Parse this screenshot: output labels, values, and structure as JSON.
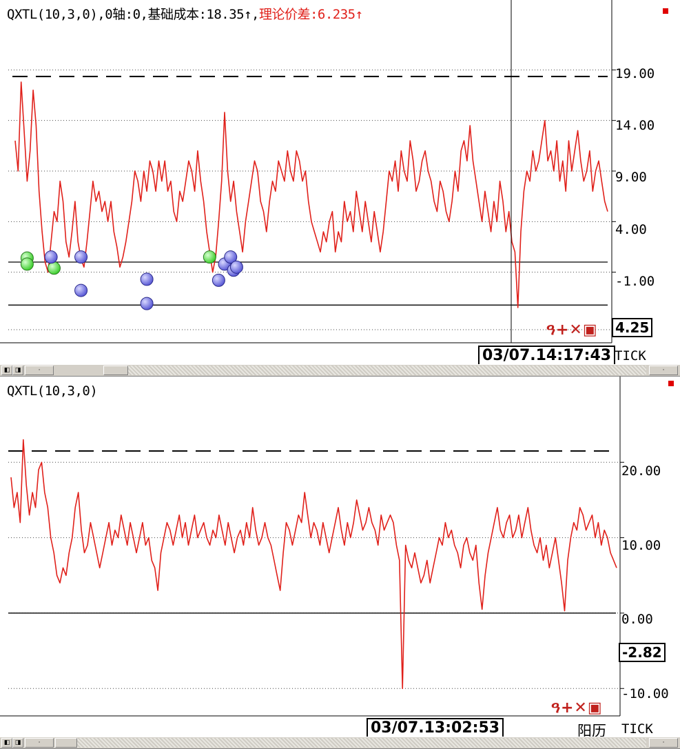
{
  "colors": {
    "series": "#e0201a",
    "marker_blue": "#5b5bd6",
    "marker_green": "#3fcf2f",
    "title_accent": "#e0201a"
  },
  "panels": [
    {
      "title_prefix": "QXTL(10,3,0),0轴:0,基础成本:18.35↑,",
      "title_accent": "理论价差:6.235↑",
      "y_ticks": [
        "19.00",
        "14.00",
        "9.00",
        "4.00",
        "-1.00"
      ],
      "cursor_value": "4.25",
      "cursor_time": "03/07.14:17:43",
      "period_label": "TICK",
      "tools": "ዓ+✕▣"
    },
    {
      "title_prefix": "QXTL(10,3,0)",
      "title_accent": "",
      "y_ticks": [
        "20.00",
        "10.00",
        "0.00",
        "-10.00"
      ],
      "cursor_value": "-2.82",
      "cursor_time": "03/07.13:02:53",
      "calendar_label": "阳历",
      "period_label": "TICK",
      "tools": "ዓ+✕▣"
    }
  ],
  "chart_data": [
    {
      "type": "line",
      "title": "QXTL(10,3,0),0轴:0,基础成本:18.35↑,理论价差:6.235↑",
      "ylim": [
        -7.5,
        24
      ],
      "y_ticks": [
        19,
        14,
        9,
        4,
        -1
      ],
      "grid": true,
      "reference_lines": {
        "cost_dashed": 18.35,
        "zero_solid": 0,
        "lower_solid": -4.25
      },
      "series": [
        {
          "values": [
            12,
            9,
            17.8,
            13,
            8,
            11,
            17,
            13.5,
            7,
            3,
            0,
            -1,
            2,
            5,
            4,
            8,
            6,
            2,
            0.5,
            3,
            6,
            2,
            0.3,
            -0.5,
            2,
            5,
            8,
            6,
            7,
            5,
            6,
            4,
            6,
            3,
            1.5,
            -0.5,
            0.5,
            2,
            4,
            6,
            9,
            8,
            6,
            9,
            7,
            10,
            9,
            7,
            10,
            8,
            10,
            7,
            8,
            5,
            4,
            7,
            6,
            8,
            10,
            9,
            7,
            11,
            8,
            6,
            3,
            1,
            -1,
            0.5,
            4,
            8,
            14.8,
            9,
            6,
            8,
            5,
            3,
            1,
            4,
            6,
            8,
            10,
            9,
            6,
            5,
            3,
            6,
            8,
            7,
            10,
            9,
            8,
            11,
            9,
            8,
            11,
            10,
            8,
            9,
            6,
            4,
            3,
            2,
            1,
            3,
            2,
            4,
            5,
            1,
            3,
            2,
            6,
            4,
            5,
            3,
            7,
            5,
            3,
            6,
            4,
            2,
            5,
            3,
            1,
            3,
            6,
            9,
            8,
            10,
            7,
            11,
            9,
            8,
            12,
            10,
            7,
            8,
            10,
            11,
            9,
            8,
            6,
            5,
            8,
            7,
            5,
            4,
            6,
            9,
            7,
            11,
            12,
            10,
            13.5,
            10,
            8,
            6,
            4,
            7,
            5,
            3,
            6,
            4,
            8,
            6,
            3,
            5,
            2,
            1,
            -4.5,
            3,
            7,
            9,
            8,
            11,
            9,
            10,
            12,
            14,
            10,
            11,
            9,
            12,
            8,
            10,
            7,
            12,
            9,
            11,
            13,
            10,
            8,
            9,
            11,
            7,
            9,
            10,
            8,
            6,
            5
          ]
        }
      ],
      "markers": {
        "blue": [
          [
            12,
            0.5
          ],
          [
            22,
            0.5
          ],
          [
            22,
            -2.8
          ],
          [
            44,
            -1.7
          ],
          [
            44,
            -4.1
          ],
          [
            68,
            -1.8
          ],
          [
            70,
            -0.2
          ],
          [
            72,
            0.5
          ],
          [
            73,
            -0.8
          ],
          [
            74,
            -0.5
          ]
        ],
        "green": [
          [
            4,
            0.4
          ],
          [
            4,
            -0.2
          ],
          [
            13,
            -0.6
          ],
          [
            65,
            0.5
          ]
        ]
      }
    },
    {
      "type": "line",
      "title": "QXTL(10,3,0)",
      "ylim": [
        -14,
        31
      ],
      "y_ticks": [
        20,
        10,
        0,
        -10
      ],
      "grid": true,
      "reference_lines": {
        "cost_dashed": 21.5,
        "zero_solid": 0
      },
      "series": [
        {
          "values": [
            18,
            14,
            16,
            12,
            23,
            17,
            13,
            16,
            14,
            19,
            20,
            16,
            14,
            10,
            8,
            5,
            4,
            6,
            5,
            8,
            10,
            14,
            16,
            11,
            8,
            9,
            12,
            10,
            8,
            6,
            8,
            10,
            12,
            9,
            11,
            10,
            13,
            11,
            9,
            12,
            10,
            8,
            10,
            12,
            9,
            10,
            7,
            6,
            3,
            8,
            10,
            12,
            11,
            9,
            11,
            13,
            10,
            12,
            9,
            11,
            13,
            10,
            11,
            12,
            10,
            9,
            11,
            10,
            13,
            11,
            9,
            12,
            10,
            8,
            10,
            11,
            9,
            12,
            10,
            14,
            11,
            9,
            10,
            12,
            10,
            9,
            7,
            5,
            3,
            8,
            12,
            11,
            9,
            11,
            13,
            12,
            16,
            13,
            10,
            12,
            11,
            9,
            12,
            10,
            8,
            10,
            12,
            14,
            11,
            9,
            12,
            10,
            12,
            15,
            13,
            11,
            12,
            14,
            12,
            11,
            9,
            13,
            11,
            12,
            13,
            12,
            9,
            7,
            -10,
            9,
            7,
            6,
            8,
            6,
            4,
            5,
            7,
            4,
            6,
            8,
            10,
            9,
            12,
            10,
            11,
            9,
            8,
            6,
            9,
            10,
            8,
            7,
            9,
            4,
            0.5,
            5,
            8,
            10,
            12,
            14,
            11,
            10,
            12,
            13,
            10,
            11,
            13,
            10,
            12,
            14,
            11,
            9,
            8,
            10,
            7,
            9,
            6,
            8,
            10,
            7,
            4,
            0.3,
            7,
            10,
            12,
            11,
            14,
            13,
            11,
            12,
            13,
            10,
            12,
            9,
            11,
            10,
            8,
            7,
            6
          ]
        }
      ]
    }
  ]
}
